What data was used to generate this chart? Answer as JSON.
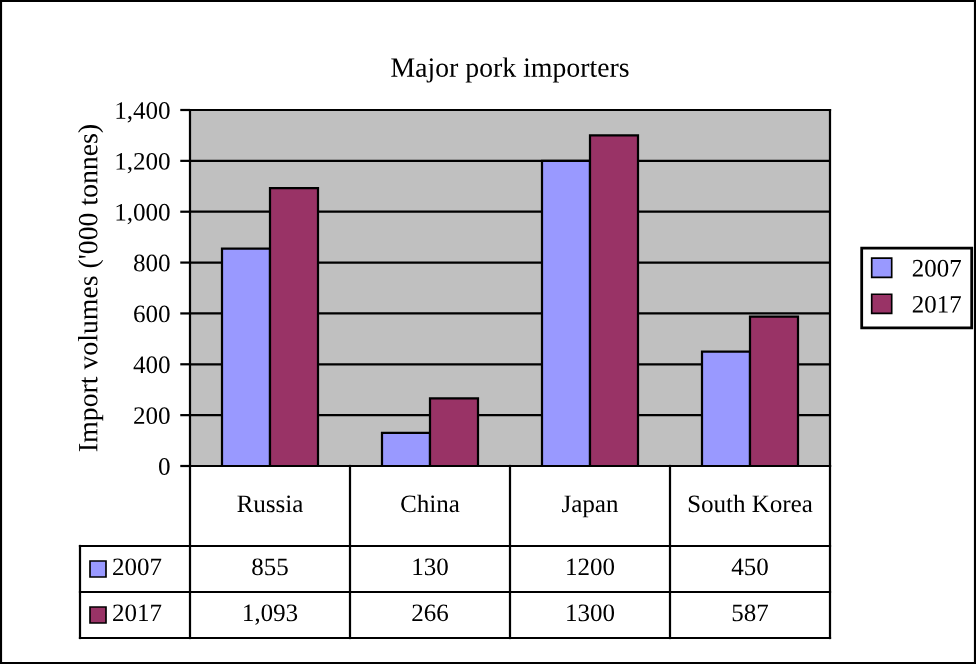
{
  "chart_data": {
    "type": "bar",
    "title": "Major pork importers",
    "ylabel": "Import volumes ('000 tonnes)",
    "categories": [
      "Russia",
      "China",
      "Japan",
      "South Korea"
    ],
    "series": [
      {
        "name": "2007",
        "color": "#9999ff",
        "values": [
          855,
          130,
          1200,
          450
        ],
        "value_labels": [
          "855",
          "130",
          "1200",
          "450"
        ]
      },
      {
        "name": "2017",
        "color": "#993366",
        "values": [
          1093,
          266,
          1300,
          587
        ],
        "value_labels": [
          "1,093",
          "266",
          "1300",
          "587"
        ]
      }
    ],
    "ylim": [
      0,
      1400
    ],
    "yticks": [
      {
        "value": 0,
        "label": "0"
      },
      {
        "value": 200,
        "label": "200"
      },
      {
        "value": 400,
        "label": "400"
      },
      {
        "value": 600,
        "label": "600"
      },
      {
        "value": 800,
        "label": "800"
      },
      {
        "value": 1000,
        "label": "1,000"
      },
      {
        "value": 1200,
        "label": "1,200"
      },
      {
        "value": 1400,
        "label": "1,400"
      }
    ],
    "grid": "y",
    "legend": "right"
  }
}
